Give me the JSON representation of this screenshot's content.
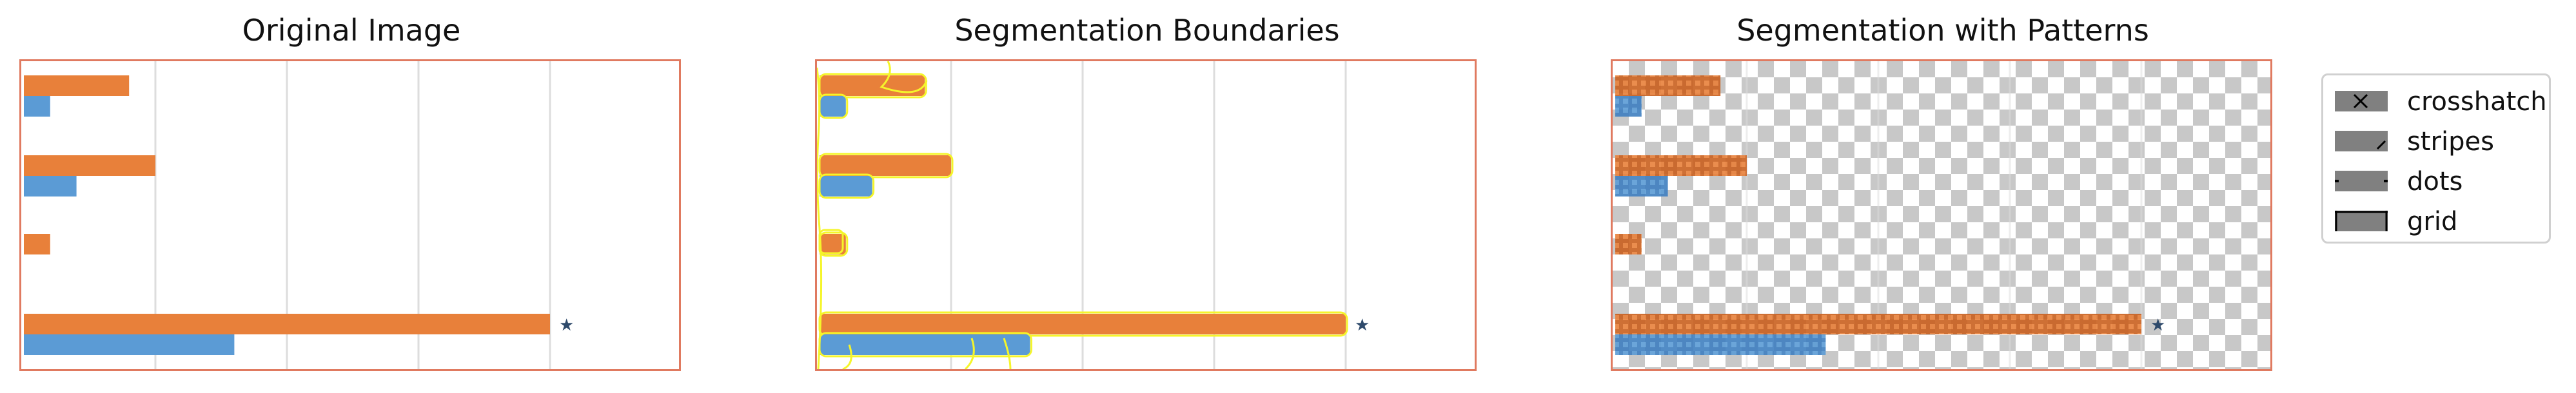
{
  "panels": [
    {
      "title": "Original Image"
    },
    {
      "title": "Segmentation Boundaries"
    },
    {
      "title": "Segmentation with Patterns"
    }
  ],
  "legend": {
    "items": [
      {
        "label": "crosshatch",
        "icon": "crosshatch-icon"
      },
      {
        "label": "stripes",
        "icon": "stripes-icon"
      },
      {
        "label": "dots",
        "icon": "dots-icon"
      },
      {
        "label": "grid",
        "icon": "grid-icon"
      }
    ]
  },
  "colors": {
    "orange": "#e8803a",
    "blue": "#5b9bd5",
    "frame": "#e07a60",
    "boundary": "#f5f52a",
    "gridline": "#dddddd",
    "star": "#2e4a6b"
  },
  "chart_data": {
    "type": "bar",
    "orientation": "horizontal",
    "xlim": [
      0,
      5
    ],
    "groups": [
      {
        "orange": 0.8,
        "blue": 0.2
      },
      {
        "orange": 1.0,
        "blue": 0.4
      },
      {
        "orange": 0.2,
        "blue": 0
      },
      {
        "orange": 4.0,
        "blue": 1.6
      }
    ],
    "marker": "★"
  }
}
